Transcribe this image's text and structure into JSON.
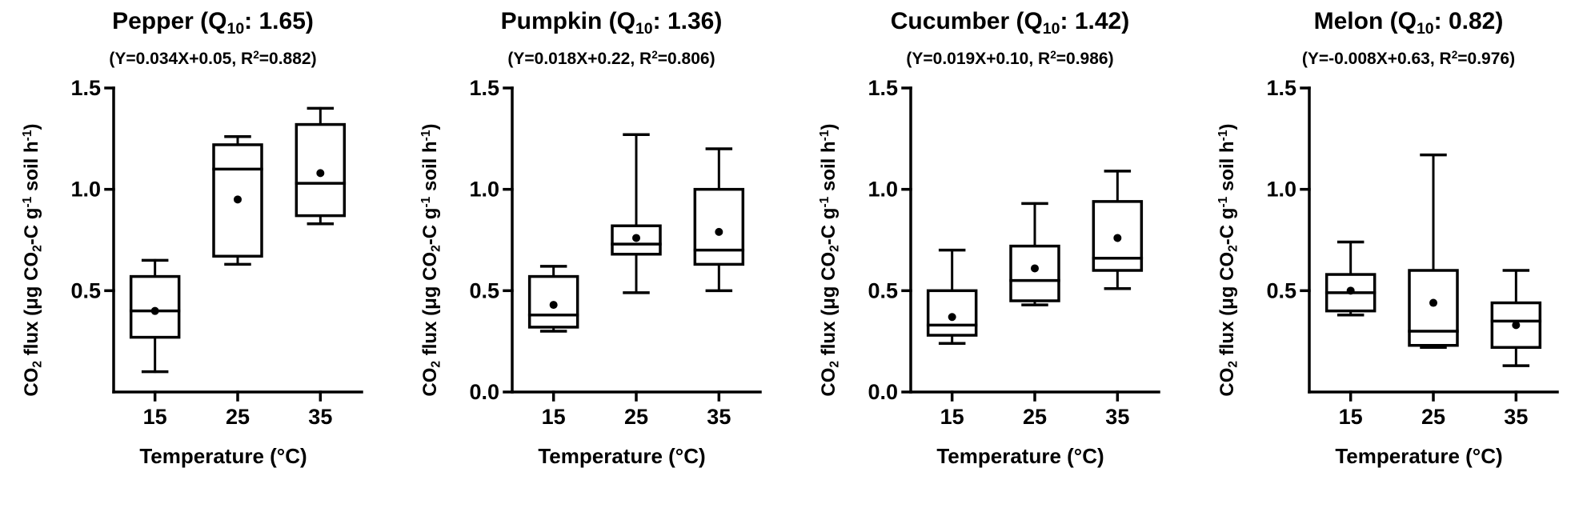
{
  "ylabel": {
    "p1": "CO",
    "s1": "2",
    "p2": " flux (μg CO",
    "s2": "2",
    "p3": "-C g",
    "u1": "-1",
    "p4": " soil h",
    "u2": "-1",
    "p5": ")"
  },
  "chart_data": [
    {
      "type": "box",
      "title": {
        "pre": "Pepper (Q",
        "sub": "10",
        "post": ": 1.65)"
      },
      "subtitle": {
        "pre": "(Y=0.034X+0.05, R",
        "sup": "2",
        "post": "=0.882)"
      },
      "stats": {
        "crop": "Pepper",
        "q10": "1.65",
        "equation": "Y=0.034X+0.05",
        "r2": "0.882"
      },
      "xlabel": "Temperature (°C)",
      "ylabel_text": "CO2 flux (μg CO2-C g-1 soil h-1)",
      "categories": [
        "15",
        "25",
        "35"
      ],
      "ylim": [
        0,
        1.5
      ],
      "ytick_labels": [
        "0.5",
        "1.0",
        "1.5"
      ],
      "grid": false,
      "boxes": [
        {
          "whisker_low": 0.1,
          "q1": 0.27,
          "median": 0.4,
          "q3": 0.57,
          "whisker_high": 0.65,
          "mean": 0.4
        },
        {
          "whisker_low": 0.63,
          "q1": 0.67,
          "median": 1.1,
          "q3": 1.22,
          "whisker_high": 1.26,
          "mean": 0.95
        },
        {
          "whisker_low": 0.83,
          "q1": 0.87,
          "median": 1.03,
          "q3": 1.32,
          "whisker_high": 1.4,
          "mean": 1.08
        }
      ]
    },
    {
      "type": "box",
      "title": {
        "pre": "Pumpkin (Q",
        "sub": "10",
        "post": ": 1.36)"
      },
      "subtitle": {
        "pre": "(Y=0.018X+0.22, R",
        "sup": "2",
        "post": "=0.806)"
      },
      "stats": {
        "crop": "Pumpkin",
        "q10": "1.36",
        "equation": "Y=0.018X+0.22",
        "r2": "0.806"
      },
      "xlabel": "Temperature (°C)",
      "ylabel_text": "CO2 flux (μg CO2-C g-1 soil h-1)",
      "categories": [
        "15",
        "25",
        "35"
      ],
      "ylim": [
        0,
        1.5
      ],
      "ytick_labels": [
        "0.0",
        "0.5",
        "1.0",
        "1.5"
      ],
      "grid": false,
      "boxes": [
        {
          "whisker_low": 0.3,
          "q1": 0.32,
          "median": 0.38,
          "q3": 0.57,
          "whisker_high": 0.62,
          "mean": 0.43
        },
        {
          "whisker_low": 0.49,
          "q1": 0.68,
          "median": 0.73,
          "q3": 0.82,
          "whisker_high": 1.27,
          "mean": 0.76
        },
        {
          "whisker_low": 0.5,
          "q1": 0.63,
          "median": 0.7,
          "q3": 1.0,
          "whisker_high": 1.2,
          "mean": 0.79
        }
      ]
    },
    {
      "type": "box",
      "title": {
        "pre": "Cucumber (Q",
        "sub": "10",
        "post": ": 1.42)"
      },
      "subtitle": {
        "pre": "(Y=0.019X+0.10, R",
        "sup": "2",
        "post": "=0.986)"
      },
      "stats": {
        "crop": "Cucumber",
        "q10": "1.42",
        "equation": "Y=0.019X+0.10",
        "r2": "0.986"
      },
      "xlabel": "Temperature (°C)",
      "ylabel_text": "CO2 flux (μg CO2-C g-1 soil h-1)",
      "categories": [
        "15",
        "25",
        "35"
      ],
      "ylim": [
        0,
        1.5
      ],
      "ytick_labels": [
        "0.0",
        "0.5",
        "1.0",
        "1.5"
      ],
      "grid": false,
      "boxes": [
        {
          "whisker_low": 0.24,
          "q1": 0.28,
          "median": 0.33,
          "q3": 0.5,
          "whisker_high": 0.7,
          "mean": 0.37
        },
        {
          "whisker_low": 0.43,
          "q1": 0.45,
          "median": 0.55,
          "q3": 0.72,
          "whisker_high": 0.93,
          "mean": 0.61
        },
        {
          "whisker_low": 0.51,
          "q1": 0.6,
          "median": 0.66,
          "q3": 0.94,
          "whisker_high": 1.09,
          "mean": 0.76
        }
      ]
    },
    {
      "type": "box",
      "title": {
        "pre": "Melon (Q",
        "sub": "10",
        "post": ": 0.82)"
      },
      "subtitle": {
        "pre": "(Y=-0.008X+0.63, R",
        "sup": "2",
        "post": "=0.976)"
      },
      "stats": {
        "crop": "Melon",
        "q10": "0.82",
        "equation": "Y=-0.008X+0.63",
        "r2": "0.976"
      },
      "xlabel": "Temperature (°C)",
      "ylabel_text": "CO2 flux (μg CO2-C g-1 soil h-1)",
      "categories": [
        "15",
        "25",
        "35"
      ],
      "ylim": [
        0,
        1.5
      ],
      "ytick_labels": [
        "0.5",
        "1.0",
        "1.5"
      ],
      "grid": false,
      "boxes": [
        {
          "whisker_low": 0.38,
          "q1": 0.4,
          "median": 0.49,
          "q3": 0.58,
          "whisker_high": 0.74,
          "mean": 0.5
        },
        {
          "whisker_low": 0.22,
          "q1": 0.23,
          "median": 0.3,
          "q3": 0.6,
          "whisker_high": 1.17,
          "mean": 0.44
        },
        {
          "whisker_low": 0.13,
          "q1": 0.22,
          "median": 0.35,
          "q3": 0.44,
          "whisker_high": 0.6,
          "mean": 0.33
        }
      ]
    }
  ]
}
